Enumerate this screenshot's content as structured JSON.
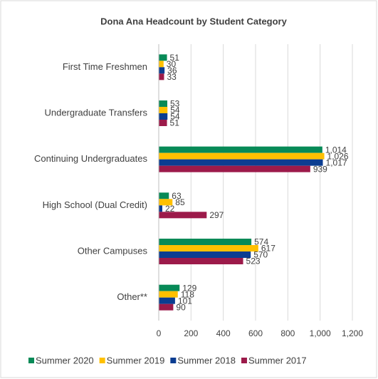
{
  "chart_data": {
    "type": "hbar",
    "title": "Dona Ana Headcount by Student Category",
    "categories": [
      "First Time Freshmen",
      "Undergraduate Transfers",
      "Continuing Undergraduates",
      "High School (Dual Credit)",
      "Other Campuses",
      "Other**"
    ],
    "series": [
      {
        "name": "Summer 2020",
        "color": "#078a57",
        "values": [
          51,
          53,
          1014,
          63,
          574,
          129
        ],
        "value_labels": [
          "51",
          "53",
          "1,014",
          "63",
          "574",
          "129"
        ]
      },
      {
        "name": "Summer 2019",
        "color": "#ffc000",
        "values": [
          30,
          54,
          1026,
          85,
          617,
          118
        ],
        "value_labels": [
          "30",
          "54",
          "1,026",
          "85",
          "617",
          "118"
        ]
      },
      {
        "name": "Summer 2018",
        "color": "#0b3d91",
        "values": [
          36,
          54,
          1017,
          22,
          570,
          101
        ],
        "value_labels": [
          "36",
          "54",
          "1,017",
          "22",
          "570",
          "101"
        ]
      },
      {
        "name": "Summer 2017",
        "color": "#9c1a4a",
        "values": [
          33,
          51,
          939,
          297,
          523,
          90
        ],
        "value_labels": [
          "33",
          "51",
          "939",
          "297",
          "523",
          "90"
        ]
      }
    ],
    "xlim": [
      0,
      1200
    ],
    "xticks": [
      0,
      200,
      400,
      600,
      800,
      {
        "value": 1000,
        "label": "1,000"
      },
      {
        "value": 1200,
        "label": "1,200"
      }
    ],
    "grid": true,
    "legend": "bottom"
  }
}
